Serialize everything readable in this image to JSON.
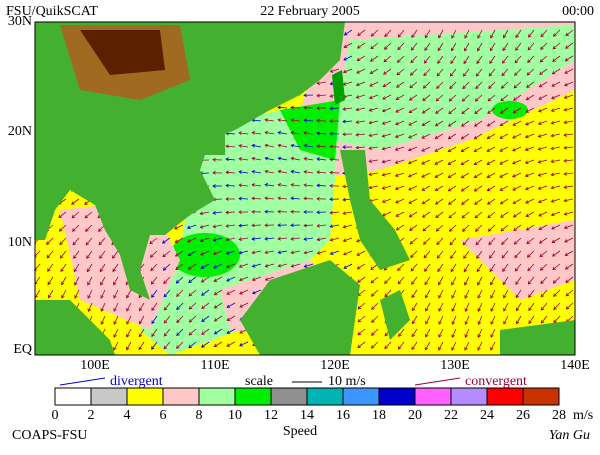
{
  "header": {
    "left": "FSU/QuikSCAT",
    "center": "22 February 2005",
    "right": "00:00"
  },
  "lat_labels": [
    "30N",
    "20N",
    "10N",
    "EQ"
  ],
  "lon_labels": [
    "100E",
    "110E",
    "120E",
    "130E",
    "140E"
  ],
  "legend": {
    "divergent": "divergent",
    "scale": "scale",
    "scale_value": "10 m/s",
    "convergent": "convergent"
  },
  "colorbar": {
    "labels": [
      0,
      2,
      4,
      6,
      8,
      10,
      12,
      14,
      16,
      18,
      20,
      22,
      24,
      26,
      28
    ],
    "unit": "m/s",
    "title": "Speed",
    "colors": [
      "#ffffff",
      "#c8c8c8",
      "#ffff00",
      "#ffc8c8",
      "#a0ffa0",
      "#00ee00",
      "#909090",
      "#00b4b4",
      "#3c96ff",
      "#0000cc",
      "#ff60ff",
      "#b48cff",
      "#ff0000",
      "#c83200",
      "#000000"
    ]
  },
  "footer": {
    "left": "COAPS-FSU",
    "right": "Yan Gu"
  }
}
